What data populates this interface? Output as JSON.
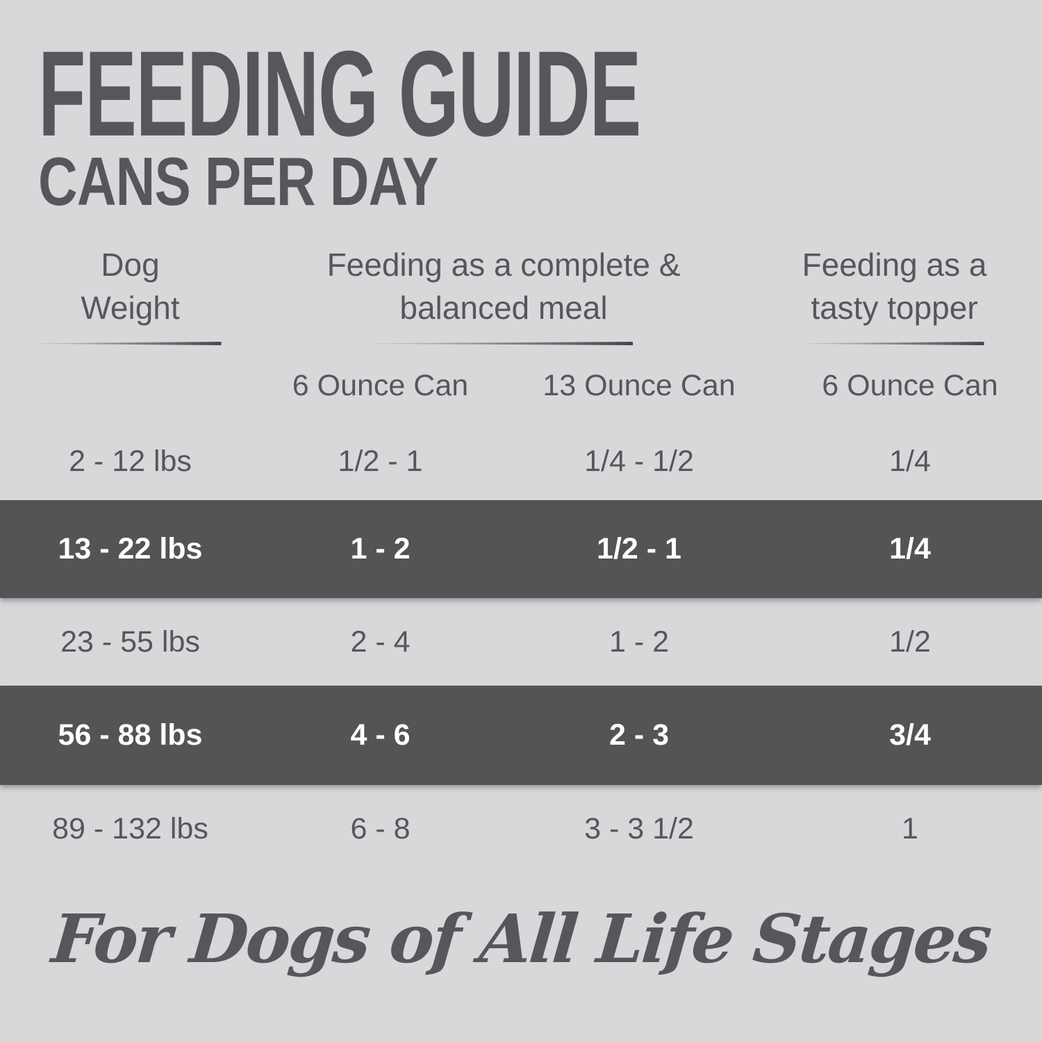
{
  "theme": {
    "background": "#d7d8da",
    "text": "#56575a",
    "highlight_row_bg": "#545456",
    "highlight_row_text": "#ffffff",
    "underline": "#46474a"
  },
  "chart_data": {
    "type": "table",
    "title": "FEEDING GUIDE",
    "subtitle": "CANS PER DAY",
    "column_groups": [
      {
        "label": "Dog Weight",
        "span": 1
      },
      {
        "label": "Feeding as a complete & balanced meal",
        "span": 2
      },
      {
        "label": "Feeding as a tasty topper",
        "span": 1
      }
    ],
    "sub_headers": [
      "6 Ounce Can",
      "13 Ounce Can",
      "6 Ounce Can"
    ],
    "rows": [
      {
        "weight": "2 - 12 lbs",
        "meal_6oz": "1/2 - 1",
        "meal_13oz": "1/4 - 1/2",
        "topper_6oz": "1/4",
        "highlighted": false
      },
      {
        "weight": "13 - 22 lbs",
        "meal_6oz": "1 - 2",
        "meal_13oz": "1/2 - 1",
        "topper_6oz": "1/4",
        "highlighted": true
      },
      {
        "weight": "23 - 55 lbs",
        "meal_6oz": "2 - 4",
        "meal_13oz": "1 - 2",
        "topper_6oz": "1/2",
        "highlighted": false
      },
      {
        "weight": "56 - 88 lbs",
        "meal_6oz": "4 - 6",
        "meal_13oz": "2 - 3",
        "topper_6oz": "3/4",
        "highlighted": true
      },
      {
        "weight": "89 - 132 lbs",
        "meal_6oz": "6 - 8",
        "meal_13oz": "3 - 3 1/2",
        "topper_6oz": "1",
        "highlighted": false
      }
    ],
    "footer": "For Dogs of All Life Stages"
  }
}
